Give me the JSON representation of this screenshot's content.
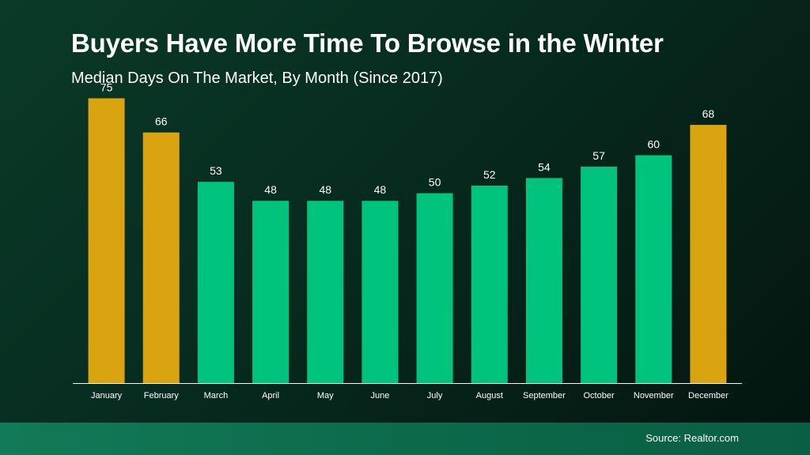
{
  "header": {
    "title": "Buyers Have More Time To Browse in the Winter",
    "subtitle": "Median Days On The Market, By Month (Since 2017)"
  },
  "footer": {
    "source": "Source: Realtor.com"
  },
  "colors": {
    "highlight": "#d9a40f",
    "default": "#00c47d",
    "axis": "#ffffff",
    "text": "#ffffff"
  },
  "chart_data": {
    "type": "bar",
    "categories": [
      "January",
      "February",
      "March",
      "April",
      "May",
      "June",
      "July",
      "August",
      "September",
      "October",
      "November",
      "December"
    ],
    "values": [
      75,
      66,
      53,
      48,
      48,
      48,
      50,
      52,
      54,
      57,
      60,
      68
    ],
    "highlighted": [
      "January",
      "February",
      "December"
    ],
    "ylim": [
      0,
      78
    ],
    "grid": false,
    "legend": "none"
  }
}
